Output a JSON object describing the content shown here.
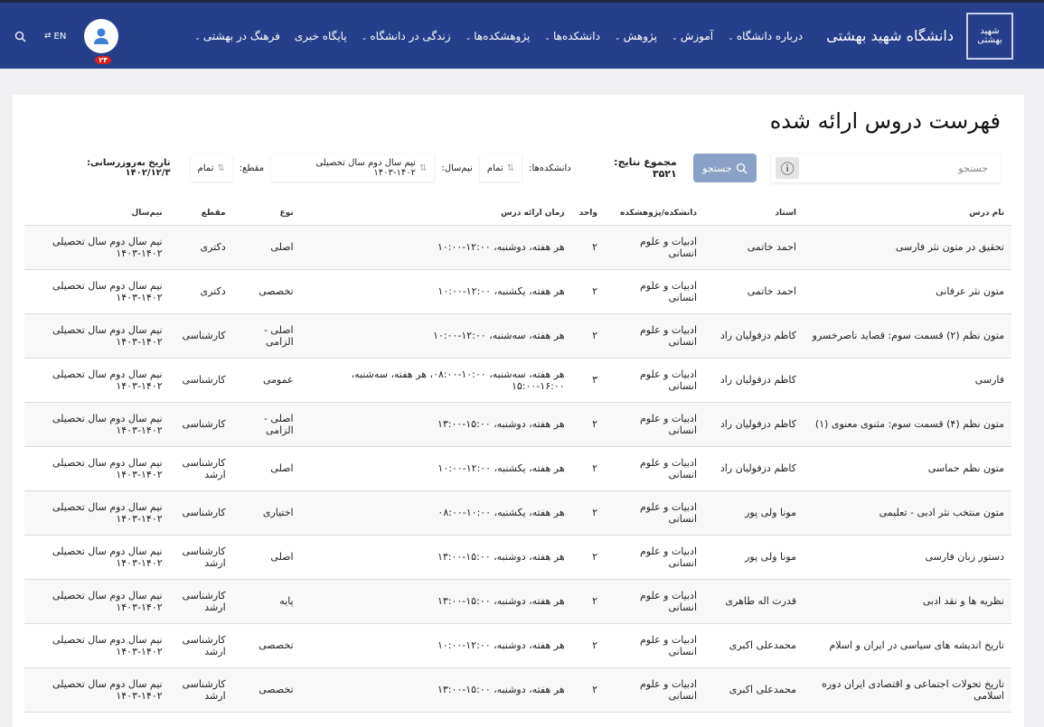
{
  "header": {
    "logo_text": "دانشگاه شهید بهشتی",
    "brand": "دانشگاه شهید بهشتی",
    "menu": [
      {
        "label": "درباره دانشگاه",
        "dropdown": true
      },
      {
        "label": "آموزش",
        "dropdown": true
      },
      {
        "label": "پژوهش",
        "dropdown": true
      },
      {
        "label": "دانشکده‌ها",
        "dropdown": true
      },
      {
        "label": "پژوهشکده‌ها",
        "dropdown": true
      },
      {
        "label": "زندگی در دانشگاه",
        "dropdown": true
      },
      {
        "label": "پایگاه خبری",
        "dropdown": false
      },
      {
        "label": "فرهنگ در بهشتی",
        "dropdown": true
      }
    ],
    "notification_count": "۲۴",
    "lang": "EN",
    "colors": {
      "bar": "#253f8a",
      "badge": "#d62020"
    }
  },
  "page": {
    "title": "فهرست دروس ارائه شده"
  },
  "filters": {
    "search_placeholder": "جستجو",
    "search_button": "جستجو",
    "total_label": "مجموع نتایج:",
    "total_value": "۳۵۲۱",
    "faculty_label": "دانشکده‌ها:",
    "faculty_value": "تمام",
    "semester_label": "نیم‌سال:",
    "semester_value": "نیم سال دوم سال تحصیلی ۱۴۰۲-۱۴۰۳",
    "level_label": "مقطع:",
    "level_value": "تمام",
    "updated_label": "تاریخ به‌روزرسانی:",
    "updated_value": "۱۴۰۲/۱۲/۳"
  },
  "table": {
    "columns": [
      "نام درس",
      "استاد",
      "دانشکده/پژوهشکده",
      "واحد",
      "زمان ارائه درس",
      "نوع",
      "مقطع",
      "نیم‌سال"
    ],
    "rows": [
      [
        "تحقیق در متون نثر فارسی",
        "احمد خاتمی",
        "ادبیات و علوم انسانی",
        "۲",
        "هر هفته، دوشنبه، ۱۲:۰۰-۱۰:۰۰",
        "اصلی",
        "دکتری",
        "نیم سال دوم سال تحصیلی ۱۴۰۲-۱۴۰۳"
      ],
      [
        "متون نثر عرفانی",
        "احمد خاتمی",
        "ادبیات و علوم انسانی",
        "۲",
        "هر هفته، یکشنبه، ۱۲:۰۰-۱۰:۰۰",
        "تخصصی",
        "دکتری",
        "نیم سال دوم سال تحصیلی ۱۴۰۲-۱۴۰۳"
      ],
      [
        "متون نظم (۲) قسمت سوم: قصاید ناصرخسرو",
        "کاظم دزفولیان راد",
        "ادبیات و علوم انسانی",
        "۲",
        "هر هفته، سه‌شنبه، ۱۲:۰۰-۱۰:۰۰",
        "اصلی - الزامی",
        "کارشناسی",
        "نیم سال دوم سال تحصیلی ۱۴۰۲-۱۴۰۳"
      ],
      [
        "فارسی",
        "کاظم دزفولیان راد",
        "ادبیات و علوم انسانی",
        "۳",
        "هر هفته، سه‌شنبه، ۱۰:۰۰-۰۸:۰۰، هر هفته، سه‌شنبه، ۱۶:۰۰-۱۵:۰۰",
        "عمومی",
        "کارشناسی",
        "نیم سال دوم سال تحصیلی ۱۴۰۲-۱۴۰۳"
      ],
      [
        "متون نظم (۴) قسمت سوم: مثنوی معنوی (۱)",
        "کاظم دزفولیان راد",
        "ادبیات و علوم انسانی",
        "۲",
        "هر هفته، دوشنبه، ۱۵:۰۰-۱۳:۰۰",
        "اصلی - الزامی",
        "کارشناسی",
        "نیم سال دوم سال تحصیلی ۱۴۰۲-۱۴۰۳"
      ],
      [
        "متون نظم حماسی",
        "کاظم دزفولیان راد",
        "ادبیات و علوم انسانی",
        "۲",
        "هر هفته، یکشنبه، ۱۲:۰۰-۱۰:۰۰",
        "اصلی",
        "کارشناسی ارشد",
        "نیم سال دوم سال تحصیلی ۱۴۰۲-۱۴۰۳"
      ],
      [
        "متون منتخب نثر ادبی - تعلیمی",
        "مونا ولی پور",
        "ادبیات و علوم انسانی",
        "۲",
        "هر هفته، یکشنبه، ۱۰:۰۰-۰۸:۰۰",
        "اختیاری",
        "کارشناسی",
        "نیم سال دوم سال تحصیلی ۱۴۰۲-۱۴۰۳"
      ],
      [
        "دستور زبان فارسی",
        "مونا ولی پور",
        "ادبیات و علوم انسانی",
        "۲",
        "هر هفته، دوشنبه، ۱۵:۰۰-۱۳:۰۰",
        "اصلی",
        "کارشناسی ارشد",
        "نیم سال دوم سال تحصیلی ۱۴۰۲-۱۴۰۳"
      ],
      [
        "نظریه ها و نقد ادبی",
        "قدرت اله طاهری",
        "ادبیات و علوم انسانی",
        "۲",
        "هر هفته، دوشنبه، ۱۵:۰۰-۱۳:۰۰",
        "پایه",
        "کارشناسی ارشد",
        "نیم سال دوم سال تحصیلی ۱۴۰۲-۱۴۰۳"
      ],
      [
        "تاریخ اندیشه های سیاسی در ایران و اسلام",
        "محمدعلی اکبری",
        "ادبیات و علوم انسانی",
        "۲",
        "هر هفته، دوشنبه، ۱۲:۰۰-۱۰:۰۰",
        "تخصصی",
        "کارشناسی ارشد",
        "نیم سال دوم سال تحصیلی ۱۴۰۲-۱۴۰۳"
      ],
      [
        "تاریخ تحولات اجتماعی و اقتصادی ایران دوره اسلامی",
        "محمدعلی اکبری",
        "ادبیات و علوم انسانی",
        "۲",
        "هر هفته، دوشنبه، ۱۵:۰۰-۱۳:۰۰",
        "تخصصی",
        "کارشناسی ارشد",
        "نیم سال دوم سال تحصیلی ۱۴۰۲-۱۴۰۳"
      ]
    ]
  }
}
